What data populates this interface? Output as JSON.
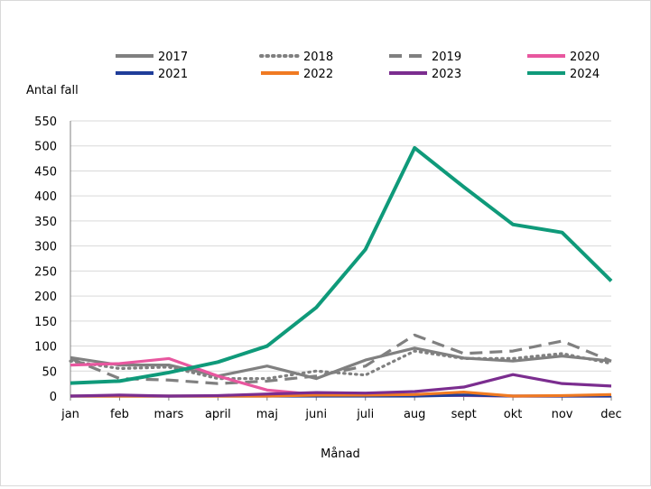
{
  "chart_data": {
    "type": "line",
    "ylabel": "Antal fall",
    "xlabel": "Månad",
    "categories": [
      "jan",
      "feb",
      "mars",
      "april",
      "maj",
      "juni",
      "juli",
      "aug",
      "sept",
      "okt",
      "nov",
      "dec"
    ],
    "ylim": [
      0,
      550
    ],
    "yticks": [
      0,
      50,
      100,
      150,
      200,
      250,
      300,
      350,
      400,
      450,
      500,
      550
    ],
    "grid": true,
    "legend": "top",
    "series": [
      {
        "name": "2017",
        "color": "#808080",
        "dash": "solid",
        "values": [
          77,
          62,
          62,
          40,
          60,
          35,
          72,
          96,
          76,
          70,
          80,
          70
        ]
      },
      {
        "name": "2018",
        "color": "#808080",
        "dash": "dot",
        "values": [
          70,
          55,
          58,
          35,
          35,
          50,
          42,
          90,
          75,
          75,
          85,
          65
        ]
      },
      {
        "name": "2019",
        "color": "#808080",
        "dash": "dash",
        "values": [
          75,
          35,
          32,
          25,
          30,
          40,
          60,
          122,
          85,
          90,
          110,
          70
        ]
      },
      {
        "name": "2020",
        "color": "#e8579f",
        "dash": "solid",
        "values": [
          62,
          65,
          75,
          40,
          12,
          3,
          2,
          2,
          1,
          0,
          0,
          0
        ]
      },
      {
        "name": "2021",
        "color": "#1f3d99",
        "dash": "solid",
        "values": [
          0,
          0,
          0,
          0,
          0,
          0,
          0,
          0,
          2,
          0,
          0,
          0
        ]
      },
      {
        "name": "2022",
        "color": "#f07a22",
        "dash": "solid",
        "values": [
          0,
          0,
          0,
          0,
          0,
          2,
          2,
          3,
          8,
          0,
          1,
          3
        ]
      },
      {
        "name": "2023",
        "color": "#7b2d8f",
        "dash": "solid",
        "values": [
          0,
          2,
          0,
          1,
          4,
          7,
          6,
          9,
          18,
          43,
          25,
          20
        ]
      },
      {
        "name": "2024",
        "color": "#0f9a7a",
        "dash": "solid",
        "values": [
          26,
          30,
          47,
          68,
          100,
          177,
          293,
          496,
          418,
          343,
          327,
          230
        ]
      }
    ]
  }
}
